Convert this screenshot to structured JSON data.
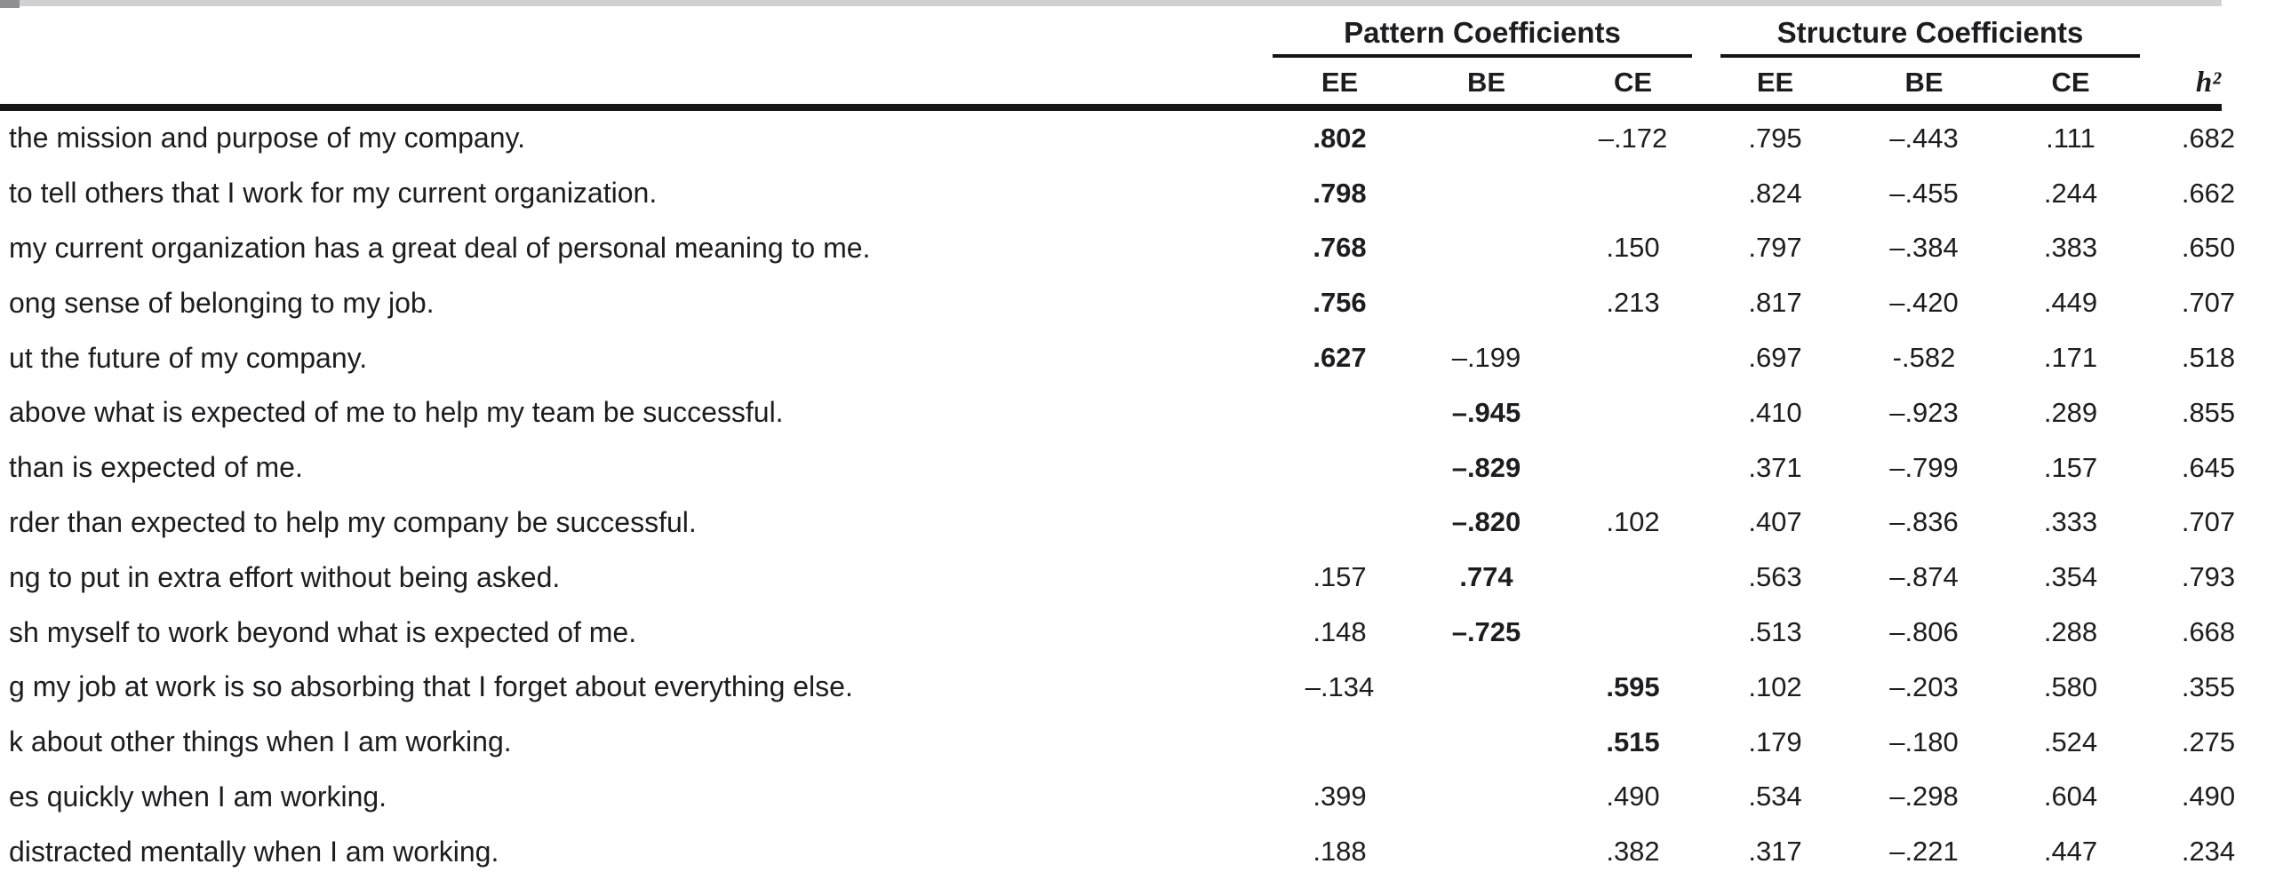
{
  "chrome": {
    "topbar_color": "#d1d1d3",
    "topbar_notch_color": "#8f8f91"
  },
  "colors": {
    "text": "#1d1d1f",
    "rule_black": "#161616",
    "background": "#ffffff"
  },
  "table": {
    "groups": [
      {
        "label": "Pattern Coefficients",
        "cols": [
          "EE",
          "BE",
          "CE"
        ]
      },
      {
        "label": "Structure Coefficients",
        "cols": [
          "EE",
          "BE",
          "CE"
        ]
      }
    ],
    "h2_label": "h²",
    "rows": [
      {
        "item": "the mission and purpose of my company.",
        "cells": [
          ".802",
          "",
          "–.172",
          ".795",
          "–.443",
          ".111"
        ],
        "h2": ".682",
        "bold_index": 0
      },
      {
        "item": "to tell others that I work for my current organization.",
        "cells": [
          ".798",
          "",
          "",
          ".824",
          "–.455",
          ".244"
        ],
        "h2": ".662",
        "bold_index": 0
      },
      {
        "item": "my current organization has a great deal of personal meaning to me.",
        "cells": [
          ".768",
          "",
          ".150",
          ".797",
          "–.384",
          ".383"
        ],
        "h2": ".650",
        "bold_index": 0
      },
      {
        "item": "ong sense of belonging to my job.",
        "cells": [
          ".756",
          "",
          ".213",
          ".817",
          "–.420",
          ".449"
        ],
        "h2": ".707",
        "bold_index": 0
      },
      {
        "item": "ut the future of my company.",
        "cells": [
          ".627",
          "–.199",
          "",
          ".697",
          "-.582",
          ".171"
        ],
        "h2": ".518",
        "bold_index": 0
      },
      {
        "item": "above what is expected of me to help my team be successful.",
        "cells": [
          "",
          "–.945",
          "",
          ".410",
          "–.923",
          ".289"
        ],
        "h2": ".855",
        "bold_index": 1
      },
      {
        "item": "than is expected of me.",
        "cells": [
          "",
          "–.829",
          "",
          ".371",
          "–.799",
          ".157"
        ],
        "h2": ".645",
        "bold_index": 1
      },
      {
        "item": "rder than expected to help my company be successful.",
        "cells": [
          "",
          "–.820",
          ".102",
          ".407",
          "–.836",
          ".333"
        ],
        "h2": ".707",
        "bold_index": 1
      },
      {
        "item": "ng to put in extra effort without being asked.",
        "cells": [
          ".157",
          ".774",
          "",
          ".563",
          "–.874",
          ".354"
        ],
        "h2": ".793",
        "bold_index": 1
      },
      {
        "item": "sh myself to work beyond what is expected of me.",
        "cells": [
          ".148",
          "–.725",
          "",
          ".513",
          "–.806",
          ".288"
        ],
        "h2": ".668",
        "bold_index": 1
      },
      {
        "item": "g my job at work is so absorbing that I forget about everything else.",
        "cells": [
          "–.134",
          "",
          ".595",
          ".102",
          "–.203",
          ".580"
        ],
        "h2": ".355",
        "bold_index": 2
      },
      {
        "item": "k about other things when I am working.",
        "cells": [
          "",
          "",
          ".515",
          ".179",
          "–.180",
          ".524"
        ],
        "h2": ".275",
        "bold_index": 2
      },
      {
        "item": "es quickly when I am working.",
        "cells": [
          ".399",
          "",
          ".490",
          ".534",
          "–.298",
          ".604"
        ],
        "h2": ".490",
        "bold_index": null
      },
      {
        "item": "distracted mentally when I am working.",
        "cells": [
          ".188",
          "",
          ".382",
          ".317",
          "–.221",
          ".447"
        ],
        "h2": ".234",
        "bold_index": null
      }
    ]
  }
}
